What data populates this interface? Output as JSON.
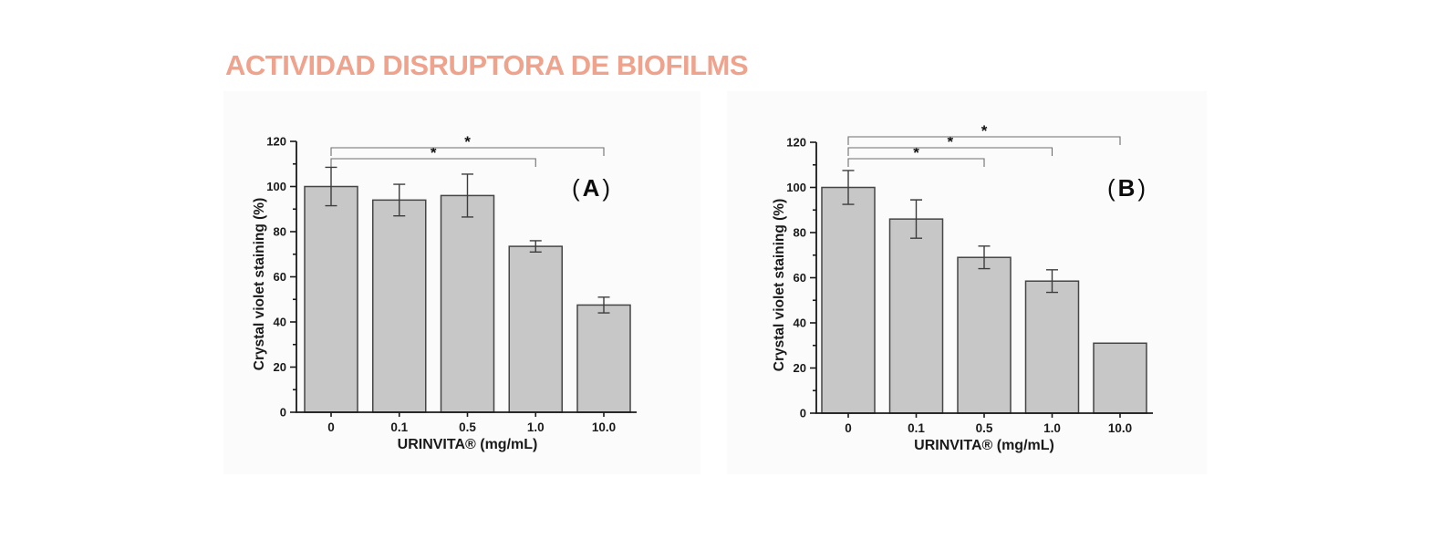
{
  "page": {
    "title": "ACTIVIDAD DISRUPTORA DE BIOFILMS",
    "title_color": "#efa28c",
    "background": "#ffffff"
  },
  "chart_data": [
    {
      "type": "bar",
      "panel_label": "(A)",
      "title": "",
      "categories": [
        "0",
        "0.1",
        "0.5",
        "1.0",
        "10.0"
      ],
      "values": [
        100,
        94,
        96,
        73.5,
        47.5
      ],
      "errors": [
        8.5,
        7,
        9.5,
        2.5,
        3.5
      ],
      "xlabel": "URINVITA® (mg/mL)",
      "ylabel": "Crystal violet staining (%)",
      "ylim": [
        0,
        120
      ],
      "ytick_step": 20,
      "yminor_step": 10,
      "grid": "off",
      "legend": "none",
      "bar_color": "#c7c7c7",
      "bar_border": "#454545",
      "axis_color": "#1a1a1a",
      "significance": [
        {
          "from": 0,
          "to": 3,
          "label": "*"
        },
        {
          "from": 0,
          "to": 4,
          "label": "*"
        }
      ]
    },
    {
      "type": "bar",
      "panel_label": "(B)",
      "title": "",
      "categories": [
        "0",
        "0.1",
        "0.5",
        "1.0",
        "10.0"
      ],
      "values": [
        100,
        86,
        69,
        58.5,
        31
      ],
      "errors": [
        7.5,
        8.5,
        5,
        5,
        null
      ],
      "xlabel": "URINVITA® (mg/mL)",
      "ylabel": "Crystal violet staining (%)",
      "ylim": [
        0,
        120
      ],
      "ytick_step": 20,
      "yminor_step": 10,
      "grid": "off",
      "legend": "none",
      "bar_color": "#c7c7c7",
      "bar_border": "#454545",
      "axis_color": "#1a1a1a",
      "significance": [
        {
          "from": 0,
          "to": 2,
          "label": "*"
        },
        {
          "from": 0,
          "to": 3,
          "label": "*"
        },
        {
          "from": 0,
          "to": 4,
          "label": "*"
        }
      ]
    }
  ]
}
